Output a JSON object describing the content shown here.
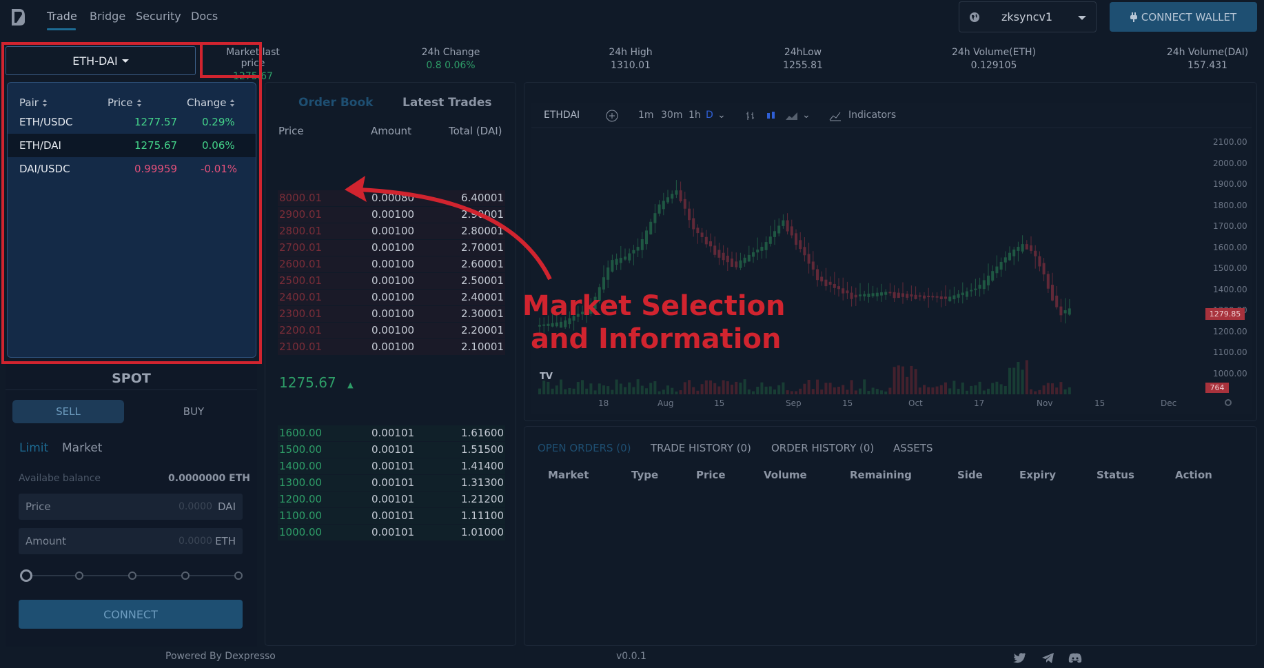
{
  "nav": {
    "links": [
      "Trade",
      "Bridge",
      "Security",
      "Docs"
    ],
    "network": "zksyncv1",
    "connect_wallet": "CONNECT WALLET"
  },
  "market": {
    "pair": "ETH-DAI",
    "stats": [
      {
        "k": "Market last price",
        "v": "1275.67",
        "green": true
      },
      {
        "k": "24h Change",
        "v": "0.8 0.06%",
        "green": true
      },
      {
        "k": "24h High",
        "v": "1310.01",
        "green": false
      },
      {
        "k": "24hLow",
        "v": "1255.81",
        "green": false
      },
      {
        "k": "24h Volume(ETH)",
        "v": "0.129105",
        "green": false
      },
      {
        "k": "24h Volume(DAI)",
        "v": "157.431",
        "green": false
      }
    ]
  },
  "pairs": {
    "headers": [
      "Pair",
      "Price",
      "Change"
    ],
    "rows": [
      {
        "pair": "ETH/USDC",
        "price": "1277.57",
        "change": "0.29%",
        "up": true
      },
      {
        "pair": "ETH/DAI",
        "price": "1275.67",
        "change": "0.06%",
        "up": true
      },
      {
        "pair": "DAI/USDC",
        "price": "0.99959",
        "change": "-0.01%",
        "up": false
      }
    ]
  },
  "spot": {
    "title": "SPOT",
    "sell": "SELL",
    "buy": "BUY",
    "limit": "Limit",
    "market": "Market",
    "balance_label": "Availabe balance",
    "balance": "0.0000000 ETH",
    "price_label": "Price",
    "price_ph": "0.0000",
    "price_unit": "DAI",
    "amount_label": "Amount",
    "amount_ph": "0.0000",
    "amount_unit": "ETH",
    "connect": "CONNECT"
  },
  "orderbook": {
    "tabs": [
      "Order Book",
      "Latest Trades"
    ],
    "headers": [
      "Price",
      "Amount",
      "Total (DAI)"
    ],
    "asks": [
      [
        "8000.01",
        "0.00080",
        "6.40001"
      ],
      [
        "2900.01",
        "0.00100",
        "2.90001"
      ],
      [
        "2800.01",
        "0.00100",
        "2.80001"
      ],
      [
        "2700.01",
        "0.00100",
        "2.70001"
      ],
      [
        "2600.01",
        "0.00100",
        "2.60001"
      ],
      [
        "2500.01",
        "0.00100",
        "2.50001"
      ],
      [
        "2400.01",
        "0.00100",
        "2.40001"
      ],
      [
        "2300.01",
        "0.00100",
        "2.30001"
      ],
      [
        "2200.01",
        "0.00100",
        "2.20001"
      ],
      [
        "2100.01",
        "0.00100",
        "2.10001"
      ]
    ],
    "mid": "1275.67",
    "bids": [
      [
        "1600.00",
        "0.00101",
        "1.61600"
      ],
      [
        "1500.00",
        "0.00101",
        "1.51500"
      ],
      [
        "1400.00",
        "0.00101",
        "1.41400"
      ],
      [
        "1300.00",
        "0.00101",
        "1.31300"
      ],
      [
        "1200.00",
        "0.00101",
        "1.21200"
      ],
      [
        "1100.00",
        "0.00101",
        "1.11100"
      ],
      [
        "1000.00",
        "0.00101",
        "1.01000"
      ]
    ]
  },
  "chart": {
    "symbol": "ETHDAI",
    "intervals": [
      "1m",
      "30m",
      "1h",
      "D"
    ],
    "indicators": "Indicators",
    "yticks": [
      "2100.00",
      "2000.00",
      "1900.00",
      "1800.00",
      "1700.00",
      "1600.00",
      "1500.00",
      "1400.00",
      "1300.00",
      "1200.00",
      "1100.00",
      "1000.00"
    ],
    "xticks": [
      "18",
      "Aug",
      "15",
      "Sep",
      "15",
      "Oct",
      "17",
      "Nov",
      "15",
      "Dec"
    ],
    "last_price": "1279.85",
    "last_vol": "764"
  },
  "orders": {
    "tabs": [
      "OPEN ORDERS (0)",
      "TRADE HISTORY (0)",
      "ORDER HISTORY (0)",
      "ASSETS"
    ],
    "headers": [
      "Market",
      "Type",
      "Price",
      "Volume",
      "Remaining",
      "Side",
      "Expiry",
      "Status",
      "Action"
    ]
  },
  "footer": {
    "powered": "Powered By Dexpresso",
    "version": "v0.0.1"
  },
  "annotation": {
    "line1": "Market Selection",
    "line2": "and Information"
  },
  "colors": {
    "green": "#2e9e68",
    "red": "#c03a4a",
    "accent": "#1e4f72",
    "annotation": "#d1242f"
  }
}
